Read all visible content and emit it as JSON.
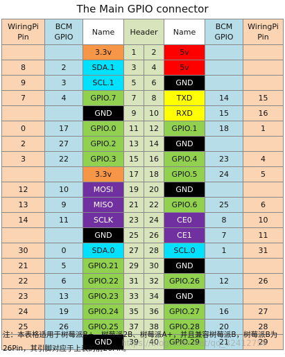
{
  "title": "The Main GPIO connector",
  "headers": {
    "wiringpi": "WiringPi Pin",
    "bcm": "BCM GPIO",
    "name": "Name",
    "header": "Header"
  },
  "colors": {
    "orange": "#f79646",
    "cyan": "#00e1ff",
    "black": "#000000",
    "green": "#92d050",
    "red": "#ff0000",
    "yellow": "#ffff00",
    "purple": "#7030a0",
    "wiringpi_col": "#fbd4b4",
    "bcm_col": "#b7dde8",
    "header_col": "#d7e4bc"
  },
  "rows": [
    {
      "lwp": "",
      "lbcm": "",
      "lname": "3.3v",
      "lc": "orange",
      "p1": "1",
      "p2": "2",
      "rname": "5v",
      "rc": "red",
      "rbcm": "",
      "rwp": ""
    },
    {
      "lwp": "8",
      "lbcm": "2",
      "lname": "SDA.1",
      "lc": "cyan",
      "p1": "3",
      "p2": "4",
      "rname": "5v",
      "rc": "red",
      "rbcm": "",
      "rwp": ""
    },
    {
      "lwp": "9",
      "lbcm": "3",
      "lname": "SCL.1",
      "lc": "cyan",
      "p1": "5",
      "p2": "6",
      "rname": "GND",
      "rc": "black",
      "rbcm": "",
      "rwp": ""
    },
    {
      "lwp": "7",
      "lbcm": "4",
      "lname": "GPIO.7",
      "lc": "green",
      "p1": "7",
      "p2": "8",
      "rname": "TXD",
      "rc": "yellow",
      "rbcm": "14",
      "rwp": "15"
    },
    {
      "lwp": "",
      "lbcm": "",
      "lname": "GND",
      "lc": "black",
      "p1": "9",
      "p2": "10",
      "rname": "RXD",
      "rc": "yellow",
      "rbcm": "15",
      "rwp": "16"
    },
    {
      "lwp": "0",
      "lbcm": "17",
      "lname": "GPIO.0",
      "lc": "green",
      "p1": "11",
      "p2": "12",
      "rname": "GPIO.1",
      "rc": "green",
      "rbcm": "18",
      "rwp": "1"
    },
    {
      "lwp": "2",
      "lbcm": "27",
      "lname": "GPIO.2",
      "lc": "green",
      "p1": "13",
      "p2": "14",
      "rname": "GND",
      "rc": "black",
      "rbcm": "",
      "rwp": ""
    },
    {
      "lwp": "3",
      "lbcm": "22",
      "lname": "GPIO.3",
      "lc": "green",
      "p1": "15",
      "p2": "16",
      "rname": "GPIO.4",
      "rc": "green",
      "rbcm": "23",
      "rwp": "4"
    },
    {
      "lwp": "",
      "lbcm": "",
      "lname": "3.3v",
      "lc": "orange",
      "p1": "17",
      "p2": "18",
      "rname": "GPIO.5",
      "rc": "green",
      "rbcm": "24",
      "rwp": "5"
    },
    {
      "lwp": "12",
      "lbcm": "10",
      "lname": "MOSI",
      "lc": "purple",
      "p1": "19",
      "p2": "20",
      "rname": "GND",
      "rc": "black",
      "rbcm": "",
      "rwp": ""
    },
    {
      "lwp": "13",
      "lbcm": "9",
      "lname": "MISO",
      "lc": "purple",
      "p1": "21",
      "p2": "22",
      "rname": "GPIO.6",
      "rc": "green",
      "rbcm": "25",
      "rwp": "6"
    },
    {
      "lwp": "14",
      "lbcm": "11",
      "lname": "SCLK",
      "lc": "purple",
      "p1": "23",
      "p2": "24",
      "rname": "CE0",
      "rc": "purple",
      "rbcm": "8",
      "rwp": "10"
    },
    {
      "lwp": "",
      "lbcm": "",
      "lname": "GND",
      "lc": "black",
      "p1": "25",
      "p2": "26",
      "rname": "CE1",
      "rc": "purple",
      "rbcm": "7",
      "rwp": "11"
    },
    {
      "lwp": "30",
      "lbcm": "0",
      "lname": "SDA.0",
      "lc": "cyan",
      "p1": "27",
      "p2": "28",
      "rname": "SCL.0",
      "rc": "cyan",
      "rbcm": "1",
      "rwp": "31"
    },
    {
      "lwp": "21",
      "lbcm": "5",
      "lname": "GPIO.21",
      "lc": "green",
      "p1": "29",
      "p2": "30",
      "rname": "GND",
      "rc": "black",
      "rbcm": "",
      "rwp": ""
    },
    {
      "lwp": "22",
      "lbcm": "6",
      "lname": "GPIO.22",
      "lc": "green",
      "p1": "31",
      "p2": "32",
      "rname": "GPIO.26",
      "rc": "green",
      "rbcm": "12",
      "rwp": "26"
    },
    {
      "lwp": "23",
      "lbcm": "13",
      "lname": "GPIO.23",
      "lc": "green",
      "p1": "33",
      "p2": "34",
      "rname": "GND",
      "rc": "black",
      "rbcm": "",
      "rwp": ""
    },
    {
      "lwp": "24",
      "lbcm": "19",
      "lname": "GPIO.24",
      "lc": "green",
      "p1": "35",
      "p2": "36",
      "rname": "GPIO.27",
      "rc": "green",
      "rbcm": "16",
      "rwp": "27"
    },
    {
      "lwp": "25",
      "lbcm": "26",
      "lname": "GPIO.25",
      "lc": "green",
      "p1": "37",
      "p2": "38",
      "rname": "GPIO.28",
      "rc": "green",
      "rbcm": "20",
      "rwp": "28"
    },
    {
      "lwp": "",
      "lbcm": "",
      "lname": "GND",
      "lc": "black",
      "p1": "39",
      "p2": "40",
      "rname": "GPIO.29",
      "rc": "green",
      "rbcm": "21",
      "rwp": "29"
    }
  ],
  "note": "注：本表格适用于树莓派B+、树莓派2B、树莓派A+，并且兼容树莓派B，树莓派B为26Pin，其引脚对应于上表的前26Pin。",
  "watermark": "https://blog.csdn.net/qq_32412759"
}
